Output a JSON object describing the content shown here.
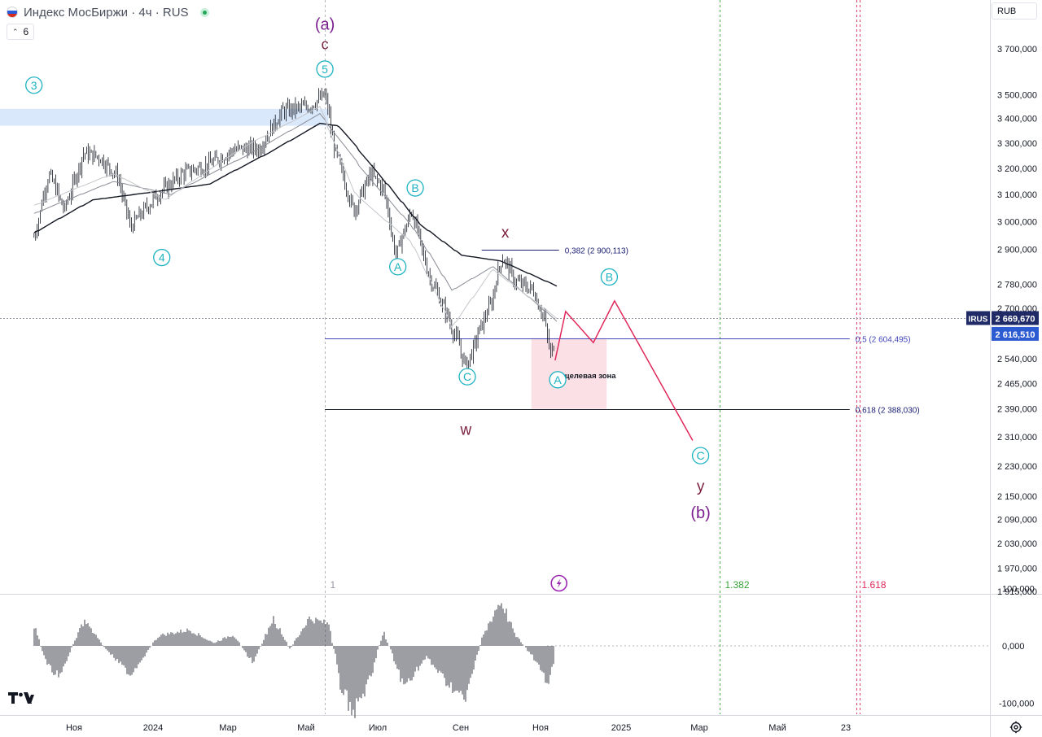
{
  "header": {
    "title": "Индекс МосБиржи · 4ч · RUS",
    "indicator_count": "6",
    "currency": "RUB"
  },
  "chart_data": {
    "type": "candlestick",
    "title": "Индекс МосБиржи · 4ч · RUS",
    "price_scale": {
      "unit": "RUB",
      "scale": "log",
      "range": [
        1890,
        3840
      ],
      "tick_labels": [
        "3 700,000",
        "3 500,000",
        "3 400,000",
        "3 300,000",
        "3 200,000",
        "3 100,000",
        "3 000,000",
        "2 900,000",
        "2 780,000",
        "2 700,000",
        "2 540,000",
        "2 465,000",
        "2 390,000",
        "2 310,000",
        "2 230,000",
        "2 150,000",
        "2 090,000",
        "2 030,000",
        "1 970,000",
        "1 915,000"
      ],
      "tick_values": [
        3700,
        3500,
        3400,
        3300,
        3200,
        3100,
        3000,
        2900,
        2780,
        2700,
        2540,
        2465,
        2390,
        2310,
        2230,
        2150,
        2090,
        2030,
        1970,
        1915
      ]
    },
    "time_axis": {
      "labels": [
        "Ноя",
        "2024",
        "Мар",
        "Май",
        "Июл",
        "Сен",
        "Ноя",
        "2025",
        "Мар",
        "Май",
        "23"
      ],
      "dates": [
        "2023-11-01",
        "2024-01-01",
        "2024-03-01",
        "2024-05-01",
        "2024-07-01",
        "2024-09-01",
        "2024-11-01",
        "2025-01-01",
        "2025-03-01",
        "2025-05-01",
        "2025-06-23"
      ]
    },
    "price_path": [
      [
        "2023-10-01",
        2945
      ],
      [
        "2023-10-12",
        3185
      ],
      [
        "2023-10-24",
        3040
      ],
      [
        "2023-11-08",
        3260
      ],
      [
        "2023-11-20",
        3245
      ],
      [
        "2023-12-04",
        3170
      ],
      [
        "2023-12-14",
        2980
      ],
      [
        "2024-01-03",
        3095
      ],
      [
        "2024-01-24",
        3180
      ],
      [
        "2024-02-14",
        3215
      ],
      [
        "2024-03-06",
        3275
      ],
      [
        "2024-03-25",
        3280
      ],
      [
        "2024-04-12",
        3430
      ],
      [
        "2024-05-03",
        3450
      ],
      [
        "2024-05-17",
        3500
      ],
      [
        "2024-05-24",
        3290
      ],
      [
        "2024-06-10",
        3040
      ],
      [
        "2024-06-25",
        3180
      ],
      [
        "2024-07-05",
        3120
      ],
      [
        "2024-07-14",
        2880
      ],
      [
        "2024-07-26",
        3040
      ],
      [
        "2024-08-07",
        2820
      ],
      [
        "2024-08-25",
        2640
      ],
      [
        "2024-09-05",
        2510
      ],
      [
        "2024-09-14",
        2620
      ],
      [
        "2024-09-24",
        2720
      ],
      [
        "2024-10-02",
        2880
      ],
      [
        "2024-10-12",
        2790
      ],
      [
        "2024-10-26",
        2760
      ],
      [
        "2024-11-04",
        2660
      ],
      [
        "2024-11-08",
        2550
      ],
      [
        "2024-11-12",
        2620
      ]
    ],
    "moving_averages": [
      {
        "color": "#131722",
        "values": [
          [
            "2023-10-01",
            2960
          ],
          [
            "2023-11-15",
            3080
          ],
          [
            "2024-01-01",
            3110
          ],
          [
            "2024-02-15",
            3140
          ],
          [
            "2024-04-01",
            3260
          ],
          [
            "2024-05-12",
            3380
          ],
          [
            "2024-05-28",
            3370
          ],
          [
            "2024-07-01",
            3180
          ],
          [
            "2024-08-01",
            2990
          ],
          [
            "2024-09-01",
            2880
          ],
          [
            "2024-10-01",
            2860
          ],
          [
            "2024-11-15",
            2770
          ]
        ]
      },
      {
        "color": "#8a8d96",
        "values": [
          [
            "2023-10-01",
            3030
          ],
          [
            "2023-12-01",
            3150
          ],
          [
            "2024-01-15",
            3100
          ],
          [
            "2024-03-15",
            3250
          ],
          [
            "2024-05-12",
            3420
          ],
          [
            "2024-06-15",
            3210
          ],
          [
            "2024-07-25",
            2990
          ],
          [
            "2024-08-25",
            2760
          ],
          [
            "2024-09-25",
            2840
          ],
          [
            "2024-11-15",
            2650
          ]
        ]
      },
      {
        "color": "#c5c7cc",
        "values": [
          [
            "2023-10-01",
            3060
          ],
          [
            "2023-12-01",
            3180
          ],
          [
            "2024-01-10",
            3080
          ],
          [
            "2024-03-15",
            3290
          ],
          [
            "2024-05-12",
            3450
          ],
          [
            "2024-06-10",
            3110
          ],
          [
            "2024-07-25",
            2930
          ],
          [
            "2024-08-25",
            2640
          ],
          [
            "2024-09-25",
            2830
          ],
          [
            "2024-11-15",
            2660
          ]
        ]
      }
    ],
    "price_labels": {
      "symbol": "IRUS",
      "symbol_value": "2 669,670",
      "last_value": "2 616,510",
      "symbol_price": 2669.67,
      "last_price": 2616.51
    },
    "fib_levels": [
      {
        "label": "0,382 (2 900,113)",
        "value": 2900.113,
        "from": "2024-09-17",
        "to": "2024-11-15",
        "color": "#1a1f72"
      },
      {
        "label": "0,5 (2 604,495)",
        "value": 2604.495,
        "from": "2024-05-17",
        "to": "2025-06-26",
        "color": "#4448b8"
      },
      {
        "label": "0,618 (2 388,030)",
        "value": 2388.03,
        "from": "2024-05-17",
        "to": "2025-06-26",
        "color": "#131722"
      }
    ],
    "target_zone": {
      "label": "целевая зона",
      "from": "2024-10-25",
      "to": "2024-12-21",
      "low": 2390,
      "high": 2604
    },
    "resistance_zone": {
      "from": "2023-10-01",
      "to": "2024-05-20",
      "low": 3370,
      "high": 3440
    },
    "projection": [
      [
        "2024-11-12",
        2535
      ],
      [
        "2024-11-20",
        2690
      ],
      [
        "2024-12-11",
        2590
      ],
      [
        "2024-12-27",
        2725
      ],
      [
        "2025-02-24",
        2300
      ]
    ],
    "wave_labels": [
      {
        "text": "(a)",
        "style": "plain",
        "color": "#7b1f8e",
        "date": "2024-05-17",
        "price": 3810,
        "size": 20
      },
      {
        "text": "c",
        "style": "plain",
        "color": "#7a1f3d",
        "date": "2024-05-17",
        "price": 3720,
        "size": 18
      },
      {
        "text": "5",
        "style": "circle",
        "color": "#1db3c2",
        "date": "2024-05-17",
        "price": 3610
      },
      {
        "text": "3",
        "style": "circle",
        "color": "#1db3c2",
        "date": "2023-10-01",
        "price": 3540
      },
      {
        "text": "4",
        "style": "circle",
        "color": "#1db3c2",
        "date": "2024-01-08",
        "price": 2872
      },
      {
        "text": "B",
        "style": "circle",
        "color": "#1db3c2",
        "date": "2024-07-29",
        "price": 3125
      },
      {
        "text": "A",
        "style": "circle",
        "color": "#1db3c2",
        "date": "2024-07-16",
        "price": 2840
      },
      {
        "text": "C",
        "style": "circle",
        "color": "#1db3c2",
        "date": "2024-09-06",
        "price": 2485
      },
      {
        "text": "x",
        "style": "plain",
        "color": "#7a1f3d",
        "date": "2024-10-05",
        "price": 2960,
        "size": 19
      },
      {
        "text": "w",
        "style": "plain",
        "color": "#7a1f3d",
        "date": "2024-09-05",
        "price": 2330,
        "size": 19
      },
      {
        "text": "A",
        "style": "circle",
        "color": "#1db3c2",
        "date": "2024-11-14",
        "price": 2476
      },
      {
        "text": "B",
        "style": "circle",
        "color": "#1db3c2",
        "date": "2024-12-23",
        "price": 2805
      },
      {
        "text": "C",
        "style": "circle",
        "color": "#1db3c2",
        "date": "2025-03-02",
        "price": 2258
      },
      {
        "text": "y",
        "style": "plain",
        "color": "#7a1f3d",
        "date": "2025-03-02",
        "price": 2175,
        "size": 19
      },
      {
        "text": "(b)",
        "style": "plain",
        "color": "#7b1f8e",
        "date": "2025-03-02",
        "price": 2105,
        "size": 20
      }
    ],
    "time_markers": [
      {
        "label": "1",
        "date": "2024-05-17",
        "color": "#9598a1"
      },
      {
        "label": "1.382",
        "date": "2025-03-17",
        "color": "#3aa33a"
      },
      {
        "label": "1.618",
        "date": "2025-07-01",
        "color": "#e0285a"
      }
    ],
    "flash_icon": "lightning-bolt-icon",
    "flash_date": "2024-11-15",
    "oscillator": {
      "range": [
        -160,
        130
      ],
      "tick_labels": [
        "100,000",
        "0,000",
        "-100,000"
      ],
      "tick_values": [
        100,
        0,
        -100
      ],
      "histogram_path": [
        [
          "2023-10-01",
          35
        ],
        [
          "2023-10-10",
          -30
        ],
        [
          "2023-10-20",
          -55
        ],
        [
          "2023-11-08",
          45
        ],
        [
          "2023-11-25",
          -5
        ],
        [
          "2023-12-14",
          -50
        ],
        [
          "2024-01-05",
          18
        ],
        [
          "2024-01-30",
          28
        ],
        [
          "2024-02-18",
          5
        ],
        [
          "2024-03-05",
          20
        ],
        [
          "2024-03-20",
          -30
        ],
        [
          "2024-04-05",
          48
        ],
        [
          "2024-04-18",
          -5
        ],
        [
          "2024-05-03",
          48
        ],
        [
          "2024-05-20",
          38
        ],
        [
          "2024-05-30",
          -70
        ],
        [
          "2024-06-10",
          -115
        ],
        [
          "2024-06-25",
          -55
        ],
        [
          "2024-07-05",
          25
        ],
        [
          "2024-07-20",
          -70
        ],
        [
          "2024-08-06",
          -20
        ],
        [
          "2024-08-20",
          -60
        ],
        [
          "2024-09-04",
          -95
        ],
        [
          "2024-09-16",
          10
        ],
        [
          "2024-10-01",
          80
        ],
        [
          "2024-10-12",
          20
        ],
        [
          "2024-10-26",
          -20
        ],
        [
          "2024-11-06",
          -65
        ],
        [
          "2024-11-12",
          -20
        ]
      ]
    }
  }
}
